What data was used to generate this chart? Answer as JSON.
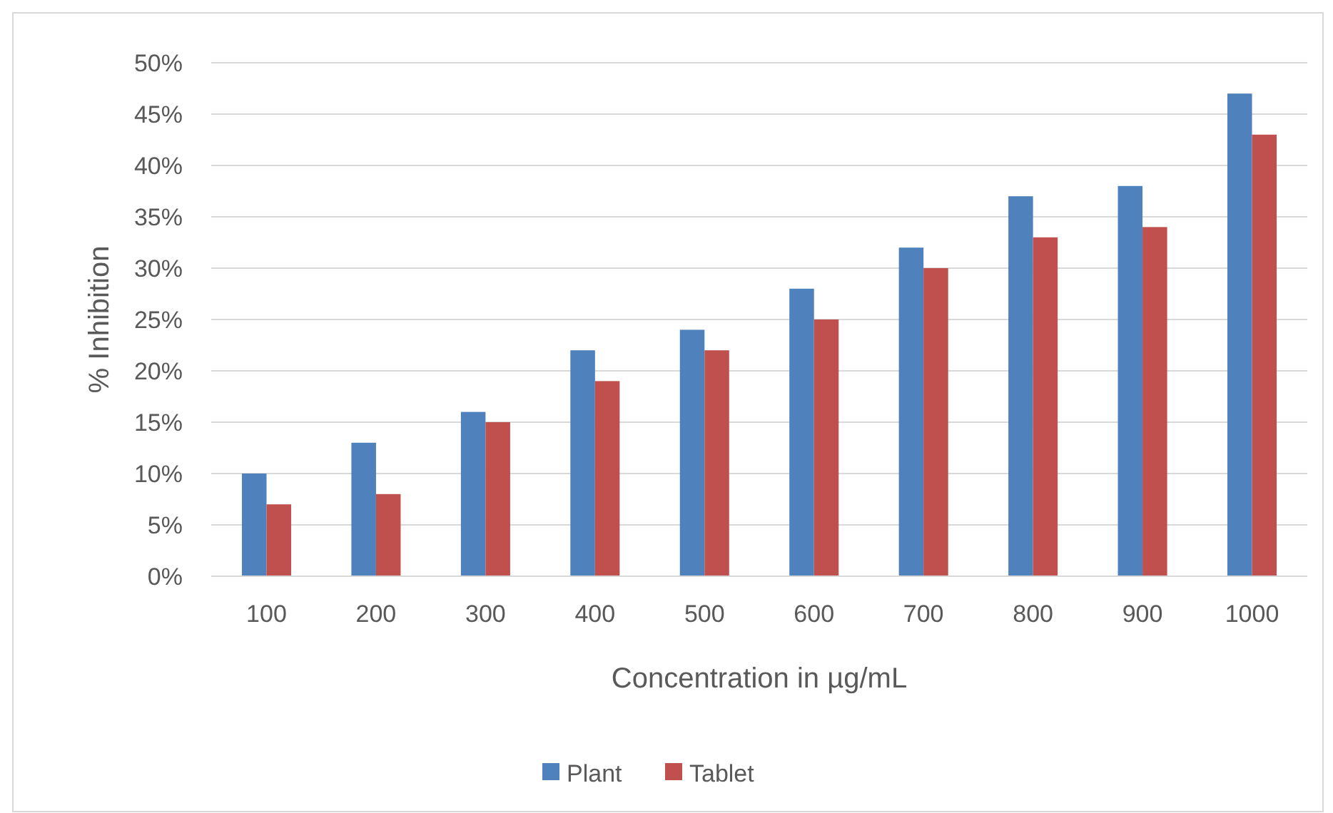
{
  "chart_data": {
    "type": "bar",
    "xlabel": "Concentration in µg/mL",
    "ylabel": "% Inhibition",
    "categories": [
      "100",
      "200",
      "300",
      "400",
      "500",
      "600",
      "700",
      "800",
      "900",
      "1000"
    ],
    "series": [
      {
        "name": "Plant",
        "color": "#4f81bd",
        "values": [
          10,
          13,
          16,
          22,
          24,
          28,
          32,
          37,
          38,
          47
        ]
      },
      {
        "name": "Tablet",
        "color": "#c0504d",
        "values": [
          7,
          8,
          15,
          19,
          22,
          25,
          30,
          33,
          34,
          43
        ]
      }
    ],
    "ylim": [
      0,
      50
    ],
    "yticks": [
      {
        "value": 0,
        "label": "0%"
      },
      {
        "value": 5,
        "label": "5%"
      },
      {
        "value": 10,
        "label": "10%"
      },
      {
        "value": 15,
        "label": "15%"
      },
      {
        "value": 20,
        "label": "20%"
      },
      {
        "value": 25,
        "label": "25%"
      },
      {
        "value": 30,
        "label": "30%"
      },
      {
        "value": 35,
        "label": "35%"
      },
      {
        "value": 40,
        "label": "40%"
      },
      {
        "value": 45,
        "label": "45%"
      },
      {
        "value": 50,
        "label": "50%"
      }
    ],
    "grid": "y",
    "legend": "bottom"
  }
}
